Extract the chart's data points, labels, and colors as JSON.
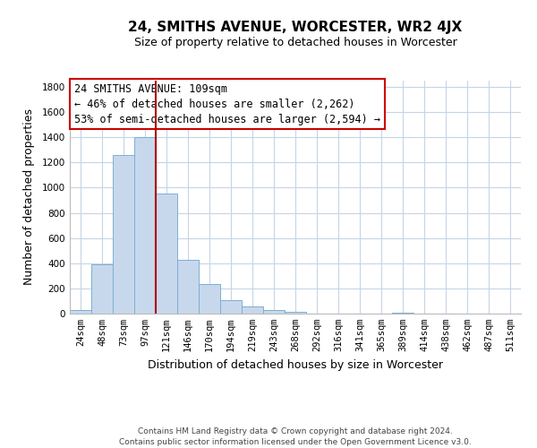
{
  "title": "24, SMITHS AVENUE, WORCESTER, WR2 4JX",
  "subtitle": "Size of property relative to detached houses in Worcester",
  "xlabel": "Distribution of detached houses by size in Worcester",
  "ylabel": "Number of detached properties",
  "bar_color": "#c8d8ec",
  "bar_edge_color": "#7aafd4",
  "categories": [
    "24sqm",
    "48sqm",
    "73sqm",
    "97sqm",
    "121sqm",
    "146sqm",
    "170sqm",
    "194sqm",
    "219sqm",
    "243sqm",
    "268sqm",
    "292sqm",
    "316sqm",
    "341sqm",
    "365sqm",
    "389sqm",
    "414sqm",
    "438sqm",
    "462sqm",
    "487sqm",
    "511sqm"
  ],
  "values": [
    25,
    390,
    1260,
    1400,
    950,
    425,
    235,
    110,
    60,
    30,
    15,
    0,
    0,
    0,
    0,
    10,
    0,
    0,
    0,
    0,
    0
  ],
  "ylim": [
    0,
    1850
  ],
  "yticks": [
    0,
    200,
    400,
    600,
    800,
    1000,
    1200,
    1400,
    1600,
    1800
  ],
  "property_line_color": "#aa0000",
  "annotation_title": "24 SMITHS AVENUE: 109sqm",
  "annotation_line1": "← 46% of detached houses are smaller (2,262)",
  "annotation_line2": "53% of semi-detached houses are larger (2,594) →",
  "annotation_box_color": "#cc0000",
  "footer1": "Contains HM Land Registry data © Crown copyright and database right 2024.",
  "footer2": "Contains public sector information licensed under the Open Government Licence v3.0.",
  "background_color": "#ffffff",
  "grid_color": "#c5d5e5",
  "title_fontsize": 11,
  "subtitle_fontsize": 9,
  "xlabel_fontsize": 9,
  "ylabel_fontsize": 9,
  "tick_fontsize": 7.5,
  "annotation_fontsize": 8.5,
  "footer_fontsize": 6.5
}
